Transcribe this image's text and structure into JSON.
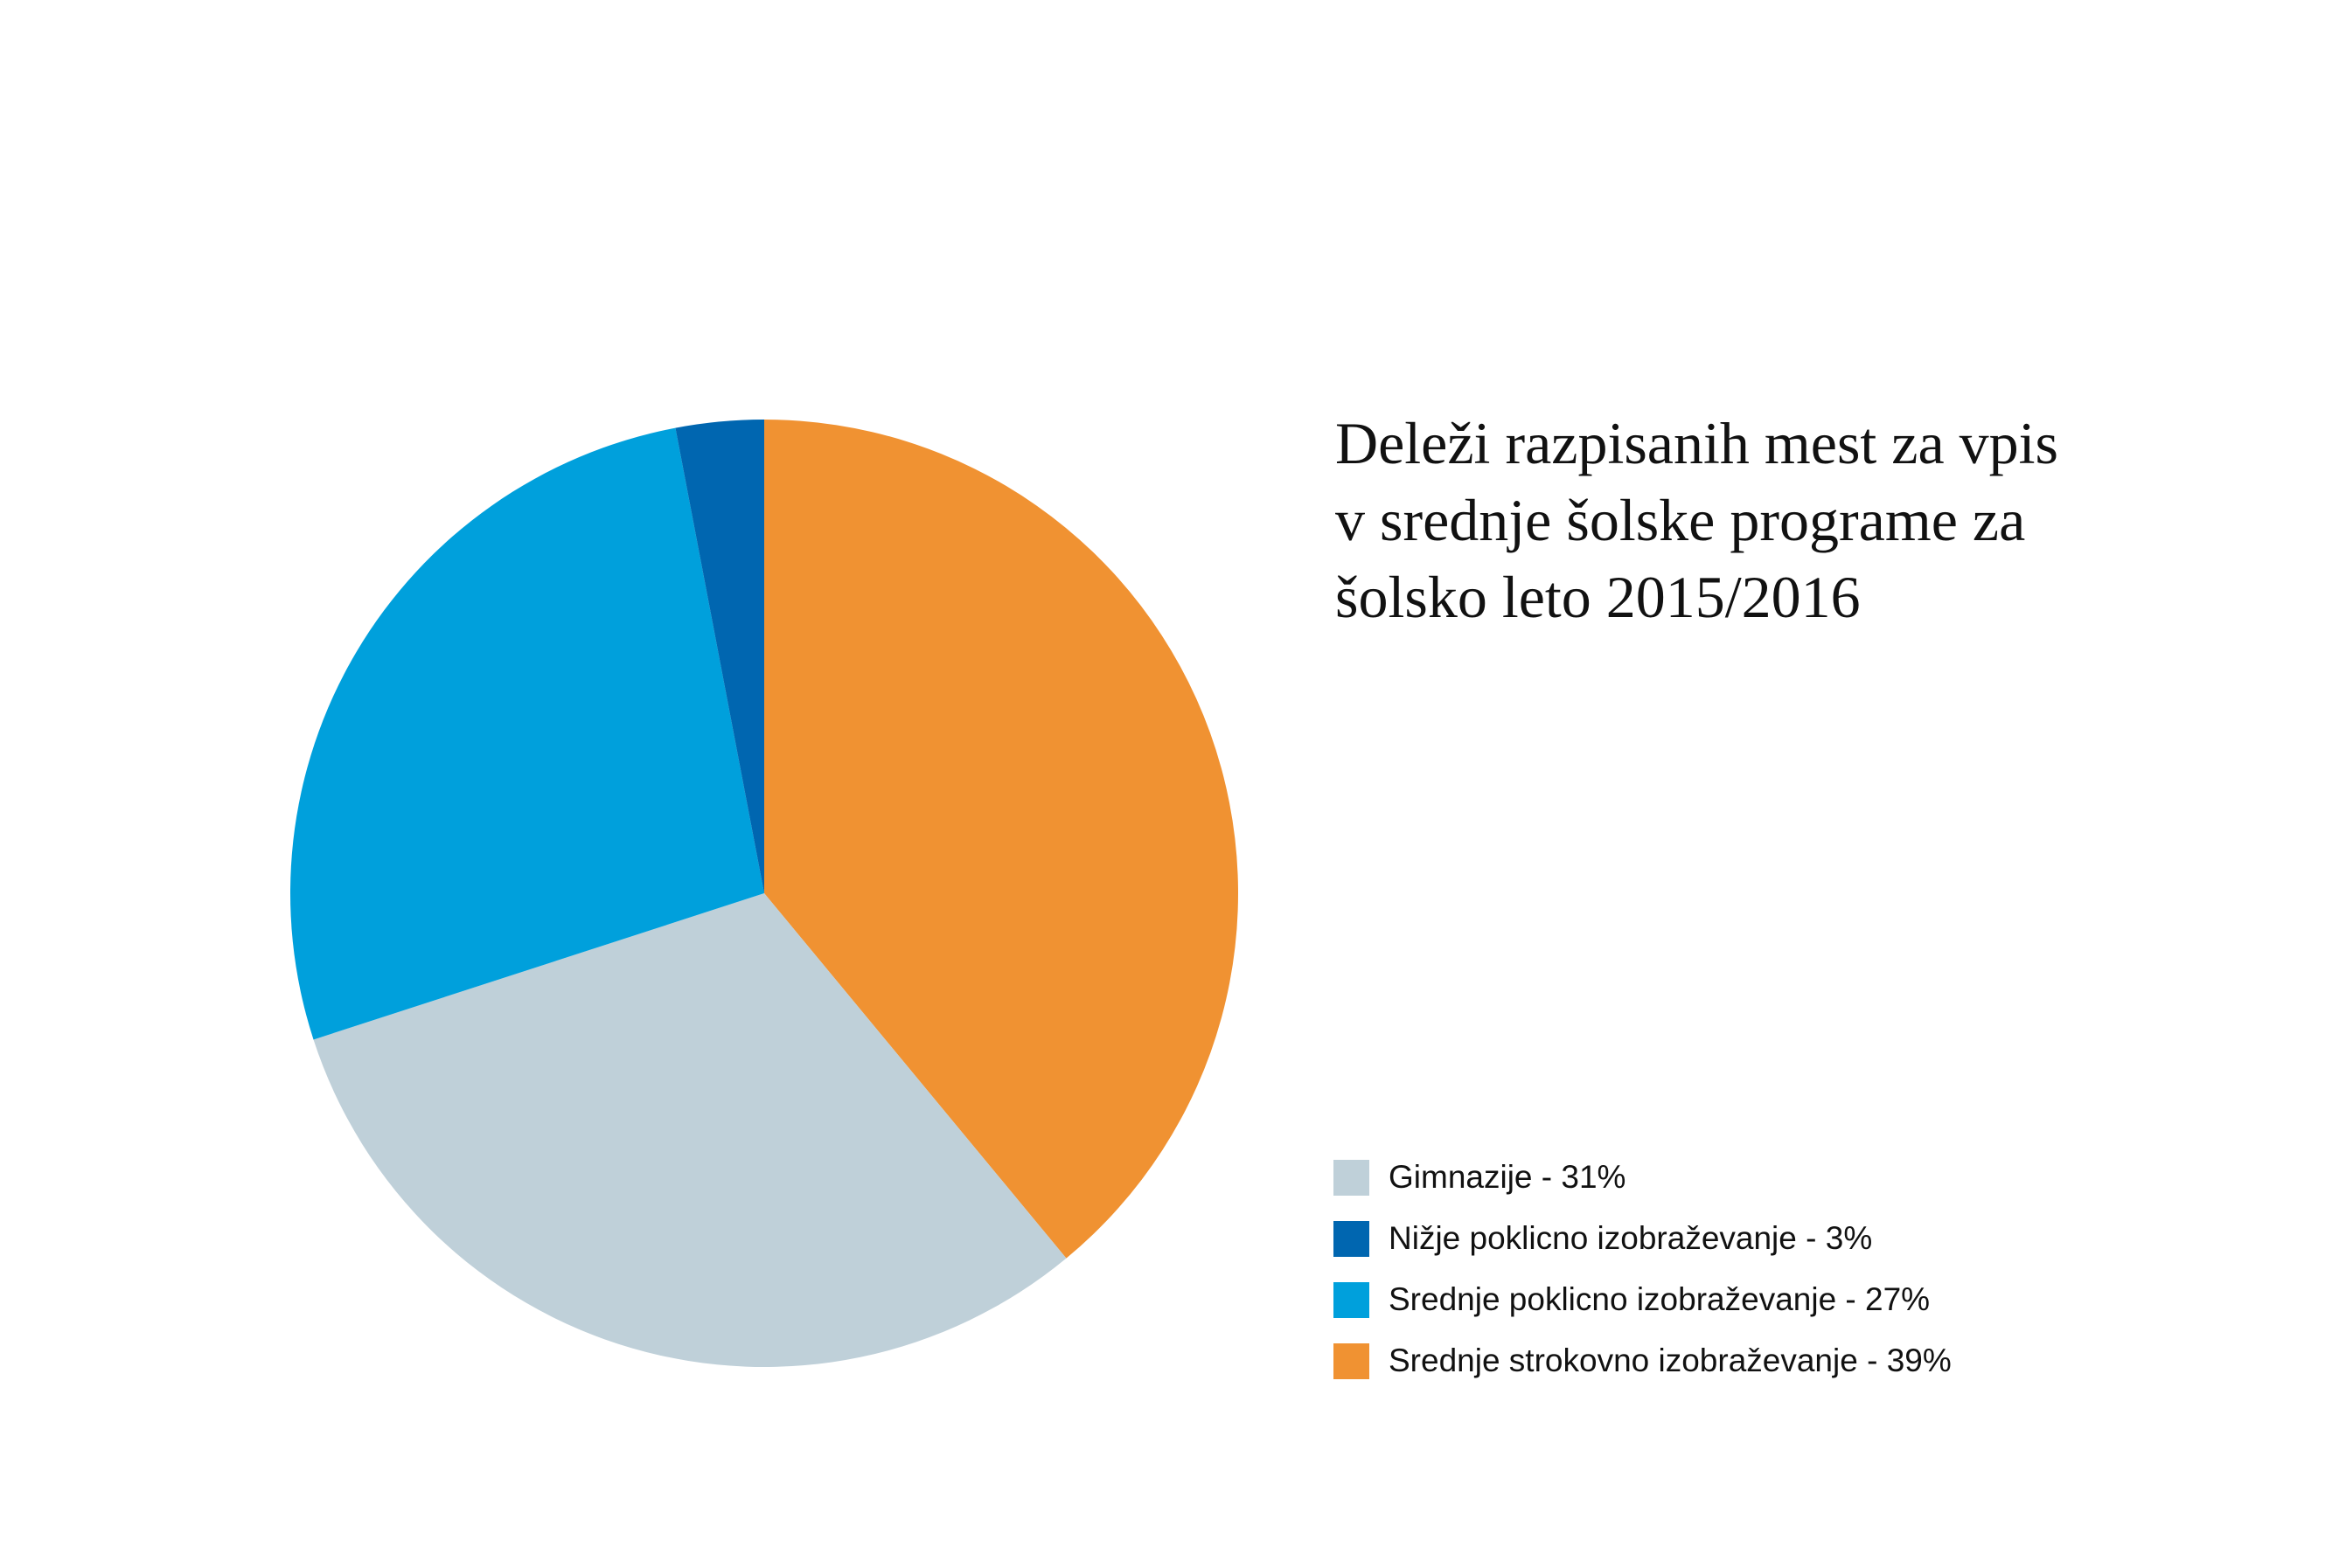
{
  "chart_data": {
    "type": "pie",
    "title": [
      "Deleži razpisanih mest za vpis",
      "v srednje šolske programe za",
      "šolsko leto 2015/2016"
    ],
    "categories": [
      "Gimnazije - 31%",
      "Nižje poklicno izobraževanje - 3%",
      "Srednje poklicno izobraževanje - 27%",
      "Srednje strokovno izobraževanje - 39%"
    ],
    "values": [
      31,
      3,
      27,
      39
    ],
    "colors": [
      "#bfd0d9",
      "#0066b0",
      "#00a0dc",
      "#f09232"
    ],
    "legend": "right"
  }
}
